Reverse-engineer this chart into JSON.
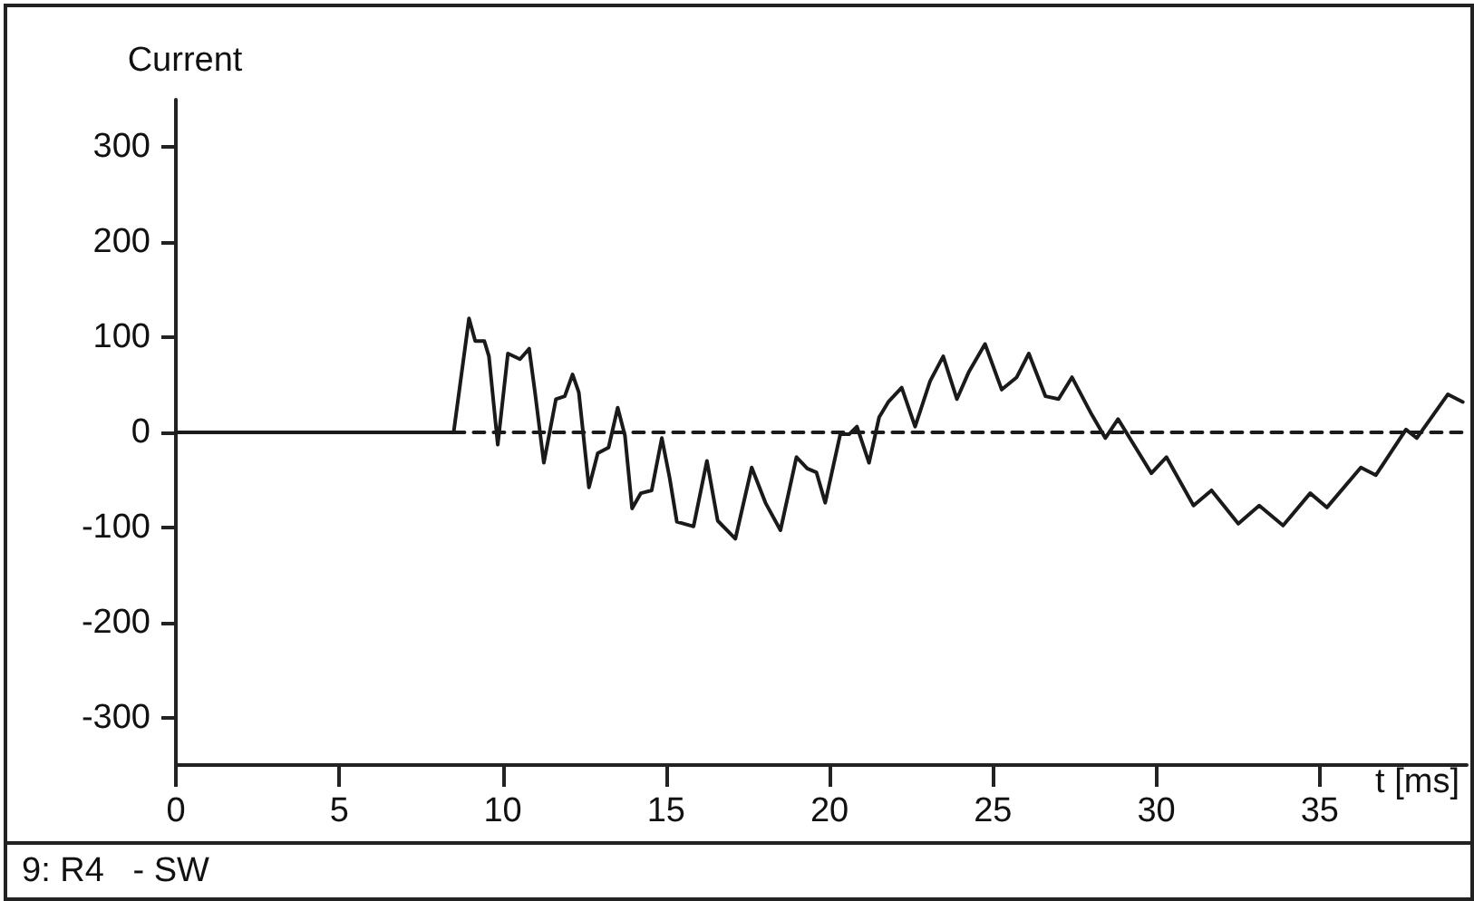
{
  "chart_data": {
    "type": "line",
    "ylabel": "Current",
    "xlabel": "t [ms]",
    "annotations": [
      "9: R4   - SW"
    ],
    "xlim": [
      0,
      39.5
    ],
    "xticks": [
      0,
      5,
      10,
      15,
      20,
      25,
      30,
      35
    ],
    "ylim": [
      -350,
      350
    ],
    "yticks": [
      -300,
      -200,
      -100,
      0,
      100,
      200,
      300
    ],
    "grid": false,
    "marker": "none",
    "series": [
      {
        "color": "#1a1a1a",
        "line_style": "solid",
        "x": [
          0,
          8.5,
          8.97,
          9.16,
          9.44,
          9.58,
          9.85,
          10.16,
          10.53,
          10.81,
          10.99,
          11.26,
          11.63,
          11.9,
          12.14,
          12.33,
          12.64,
          12.91,
          13.24,
          13.52,
          13.74,
          13.96,
          14.23,
          14.56,
          14.87,
          15.11,
          15.33,
          15.84,
          16.25,
          16.58,
          17.12,
          17.62,
          18.04,
          18.5,
          18.99,
          19.32,
          19.6,
          19.87,
          20.33,
          20.6,
          20.84,
          21.21,
          21.52,
          21.8,
          22.21,
          22.62,
          23.08,
          23.48,
          23.9,
          24.27,
          24.76,
          25.27,
          25.73,
          26.1,
          26.61,
          27.01,
          27.42,
          28.02,
          28.44,
          28.83,
          29.85,
          30.31,
          31.14,
          31.69,
          32.51,
          33.15,
          33.88,
          34.71,
          35.22,
          36.26,
          36.72,
          37.64,
          37.97,
          38.92,
          39.38
        ],
        "values": [
          0,
          0,
          120,
          96,
          96,
          80,
          -13,
          83,
          77,
          88,
          42,
          -32,
          35,
          38,
          61,
          42,
          -58,
          -22,
          -16,
          26,
          -3,
          -80,
          -64,
          -61,
          -6,
          -48,
          -94,
          -99,
          -30,
          -93,
          -112,
          -37,
          -74,
          -103,
          -26,
          -38,
          -42,
          -74,
          -2,
          -2,
          6,
          -32,
          16,
          32,
          47,
          6,
          54,
          80,
          35,
          64,
          93,
          45,
          58,
          83,
          38,
          35,
          58,
          19,
          -6,
          14,
          -43,
          -26,
          -77,
          -61,
          -96,
          -77,
          -98,
          -64,
          -79,
          -37,
          -45,
          3,
          -6,
          40,
          32
        ]
      },
      {
        "color": "#1a1a1a",
        "line_style": "dashed",
        "x": [
          8.5,
          39.5
        ],
        "values": [
          0,
          0
        ]
      }
    ]
  }
}
